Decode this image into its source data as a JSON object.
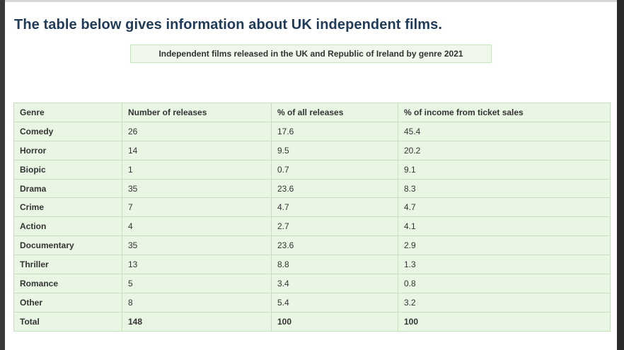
{
  "heading": "The table below gives information about UK independent films.",
  "caption": "Independent films released in the UK and Republic of Ireland by genre 2021",
  "table": {
    "headers": [
      "Genre",
      "Number of releases",
      "% of all releases",
      "% of income from ticket sales"
    ],
    "rows": [
      [
        "Comedy",
        "26",
        "17.6",
        "45.4"
      ],
      [
        "Horror",
        "14",
        "9.5",
        "20.2"
      ],
      [
        "Biopic",
        "1",
        "0.7",
        "9.1"
      ],
      [
        "Drama",
        "35",
        "23.6",
        "8.3"
      ],
      [
        "Crime",
        "7",
        "4.7",
        "4.7"
      ],
      [
        "Action",
        "4",
        "2.7",
        "4.1"
      ],
      [
        "Documentary",
        "35",
        "23.6",
        "2.9"
      ],
      [
        "Thriller",
        "13",
        "8.8",
        "1.3"
      ],
      [
        "Romance",
        "5",
        "3.4",
        "0.8"
      ],
      [
        "Other",
        "8",
        "5.4",
        "3.2"
      ]
    ],
    "total": [
      "Total",
      "148",
      "100",
      "100"
    ]
  }
}
